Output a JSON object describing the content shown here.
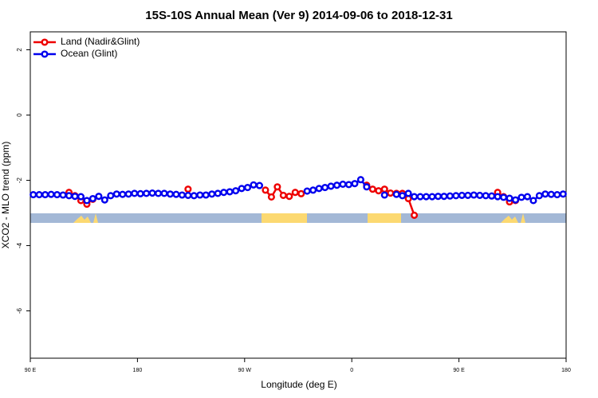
{
  "chart_data": {
    "type": "line",
    "title": "15S-10S Annual Mean (Ver 9)   2014-09-06 to 2018-12-31",
    "xlabel": "Longitude (deg E)",
    "ylabel": "XCO2 - MLO trend (ppm)",
    "xlim": [
      90,
      540
    ],
    "ylim": [
      -7.45,
      2.55
    ],
    "xticks": [
      {
        "value": 90,
        "label": "90 E"
      },
      180,
      {
        "value": 270,
        "label": "90 W"
      },
      {
        "value": 360,
        "label": "0"
      },
      {
        "value": 450,
        "label": "90 E"
      },
      {
        "value": 540,
        "label": "180"
      }
    ],
    "yticks": [
      2,
      0,
      -2,
      -4,
      -6
    ],
    "legend": "upper left",
    "x": [
      92.5,
      97.5,
      102.5,
      107.5,
      112.5,
      117.5,
      122.5,
      127.5,
      132.5,
      137.5,
      142.5,
      147.5,
      152.5,
      157.5,
      162.5,
      167.5,
      172.5,
      177.5,
      182.5,
      187.5,
      192.5,
      197.5,
      202.5,
      207.5,
      212.5,
      217.5,
      222.5,
      227.5,
      232.5,
      237.5,
      242.5,
      247.5,
      252.5,
      257.5,
      262.5,
      267.5,
      272.5,
      277.5,
      282.5,
      287.5,
      292.5,
      297.5,
      302.5,
      307.5,
      312.5,
      317.5,
      322.5,
      327.5,
      332.5,
      337.5,
      342.5,
      347.5,
      352.5,
      357.5,
      362.5,
      367.5,
      372.5,
      377.5,
      382.5,
      387.5,
      392.5,
      397.5,
      402.5,
      407.5,
      412.5,
      417.5,
      422.5,
      427.5,
      432.5,
      437.5,
      442.5,
      447.5,
      452.5,
      457.5,
      462.5,
      467.5,
      472.5,
      477.5,
      482.5,
      487.5,
      492.5,
      497.5,
      502.5,
      507.5,
      512.5,
      517.5,
      522.5,
      527.5,
      532.5,
      537.5
    ],
    "series": [
      {
        "name": "Land (Nadir&Glint)",
        "color": "#ee0000",
        "values": [
          null,
          null,
          null,
          null,
          null,
          null,
          -2.37,
          -2.47,
          -2.62,
          -2.73,
          -2.58,
          null,
          null,
          null,
          null,
          null,
          null,
          null,
          null,
          null,
          null,
          null,
          null,
          null,
          null,
          null,
          -2.27,
          null,
          null,
          null,
          null,
          null,
          null,
          null,
          null,
          null,
          null,
          null,
          null,
          -2.3,
          -2.51,
          -2.2,
          -2.46,
          -2.49,
          -2.37,
          -2.41,
          null,
          null,
          null,
          null,
          null,
          null,
          null,
          null,
          null,
          null,
          -2.15,
          -2.27,
          -2.32,
          -2.27,
          -2.39,
          -2.4,
          -2.4,
          -2.56,
          -3.07,
          null,
          null,
          null,
          null,
          null,
          null,
          null,
          null,
          null,
          null,
          null,
          null,
          null,
          -2.37,
          -2.5,
          -2.66,
          -2.62,
          null,
          null,
          null,
          null,
          null,
          null,
          null,
          null
        ]
      },
      {
        "name": "Ocean (Glint)",
        "color": "#0000ee",
        "values": [
          -2.44,
          -2.44,
          -2.44,
          -2.43,
          -2.44,
          -2.45,
          -2.47,
          -2.49,
          -2.5,
          -2.62,
          -2.56,
          -2.49,
          -2.6,
          -2.47,
          -2.42,
          -2.43,
          -2.42,
          -2.4,
          -2.41,
          -2.4,
          -2.39,
          -2.4,
          -2.4,
          -2.42,
          -2.43,
          -2.45,
          -2.46,
          -2.47,
          -2.45,
          -2.45,
          -2.42,
          -2.4,
          -2.37,
          -2.35,
          -2.32,
          -2.25,
          -2.22,
          -2.14,
          -2.16,
          null,
          null,
          null,
          null,
          null,
          null,
          null,
          -2.33,
          -2.3,
          -2.25,
          -2.22,
          -2.18,
          -2.15,
          -2.12,
          -2.13,
          -2.1,
          -1.98,
          -2.2,
          null,
          null,
          -2.45,
          null,
          -2.43,
          -2.47,
          -2.4,
          -2.5,
          -2.5,
          -2.5,
          -2.5,
          -2.49,
          -2.49,
          -2.48,
          -2.47,
          -2.46,
          -2.46,
          -2.45,
          -2.46,
          -2.47,
          -2.48,
          -2.5,
          -2.52,
          -2.55,
          -2.6,
          -2.52,
          -2.5,
          -2.62,
          -2.47,
          -2.42,
          -2.43,
          -2.44,
          -2.42
        ]
      }
    ]
  }
}
